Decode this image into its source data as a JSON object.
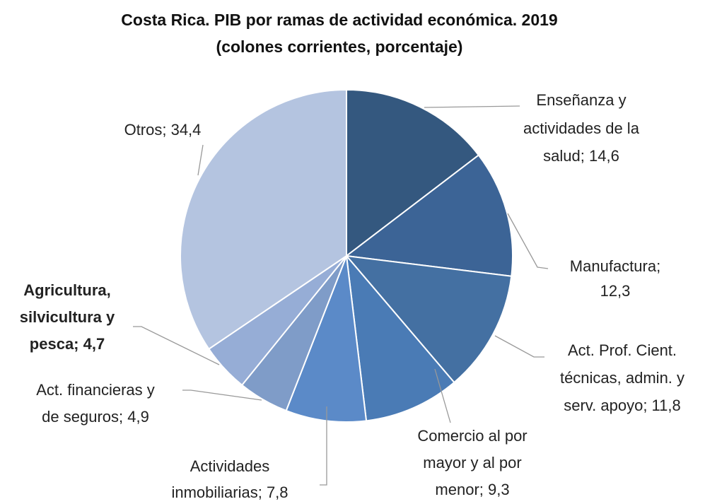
{
  "chart_data": {
    "type": "pie",
    "title": "Costa Rica.  PIB por ramas de actividad económica. 2019",
    "subtitle": "(colones corrientes, porcentaje)",
    "values": [
      14.6,
      12.3,
      11.8,
      9.3,
      7.8,
      4.9,
      4.7,
      34.4
    ],
    "value_labels": [
      [
        "Enseñanza y",
        "actividades de la",
        "salud; 14,6"
      ],
      [
        "Manufactura;",
        "12,3"
      ],
      [
        "Act. Prof. Cient.",
        "técnicas, admin. y",
        "serv. apoyo; 11,8"
      ],
      [
        "Comercio al por",
        "mayor y al por",
        "menor; 9,3"
      ],
      [
        "Actividades",
        "inmobiliarias; 7,8"
      ],
      [
        "Act. financieras y",
        "de seguros; 4,9"
      ],
      [
        "Agricultura,",
        "silvicultura y",
        "pesca; 4,7"
      ],
      [
        "Otros; 34,4"
      ]
    ],
    "bold_labels": [
      false,
      false,
      false,
      false,
      false,
      false,
      true,
      false
    ],
    "colors": [
      "#34587f",
      "#3c6496",
      "#4470a2",
      "#4a7bb5",
      "#5b8ac8",
      "#7f9cc8",
      "#96add6",
      "#b4c4e0"
    ]
  }
}
